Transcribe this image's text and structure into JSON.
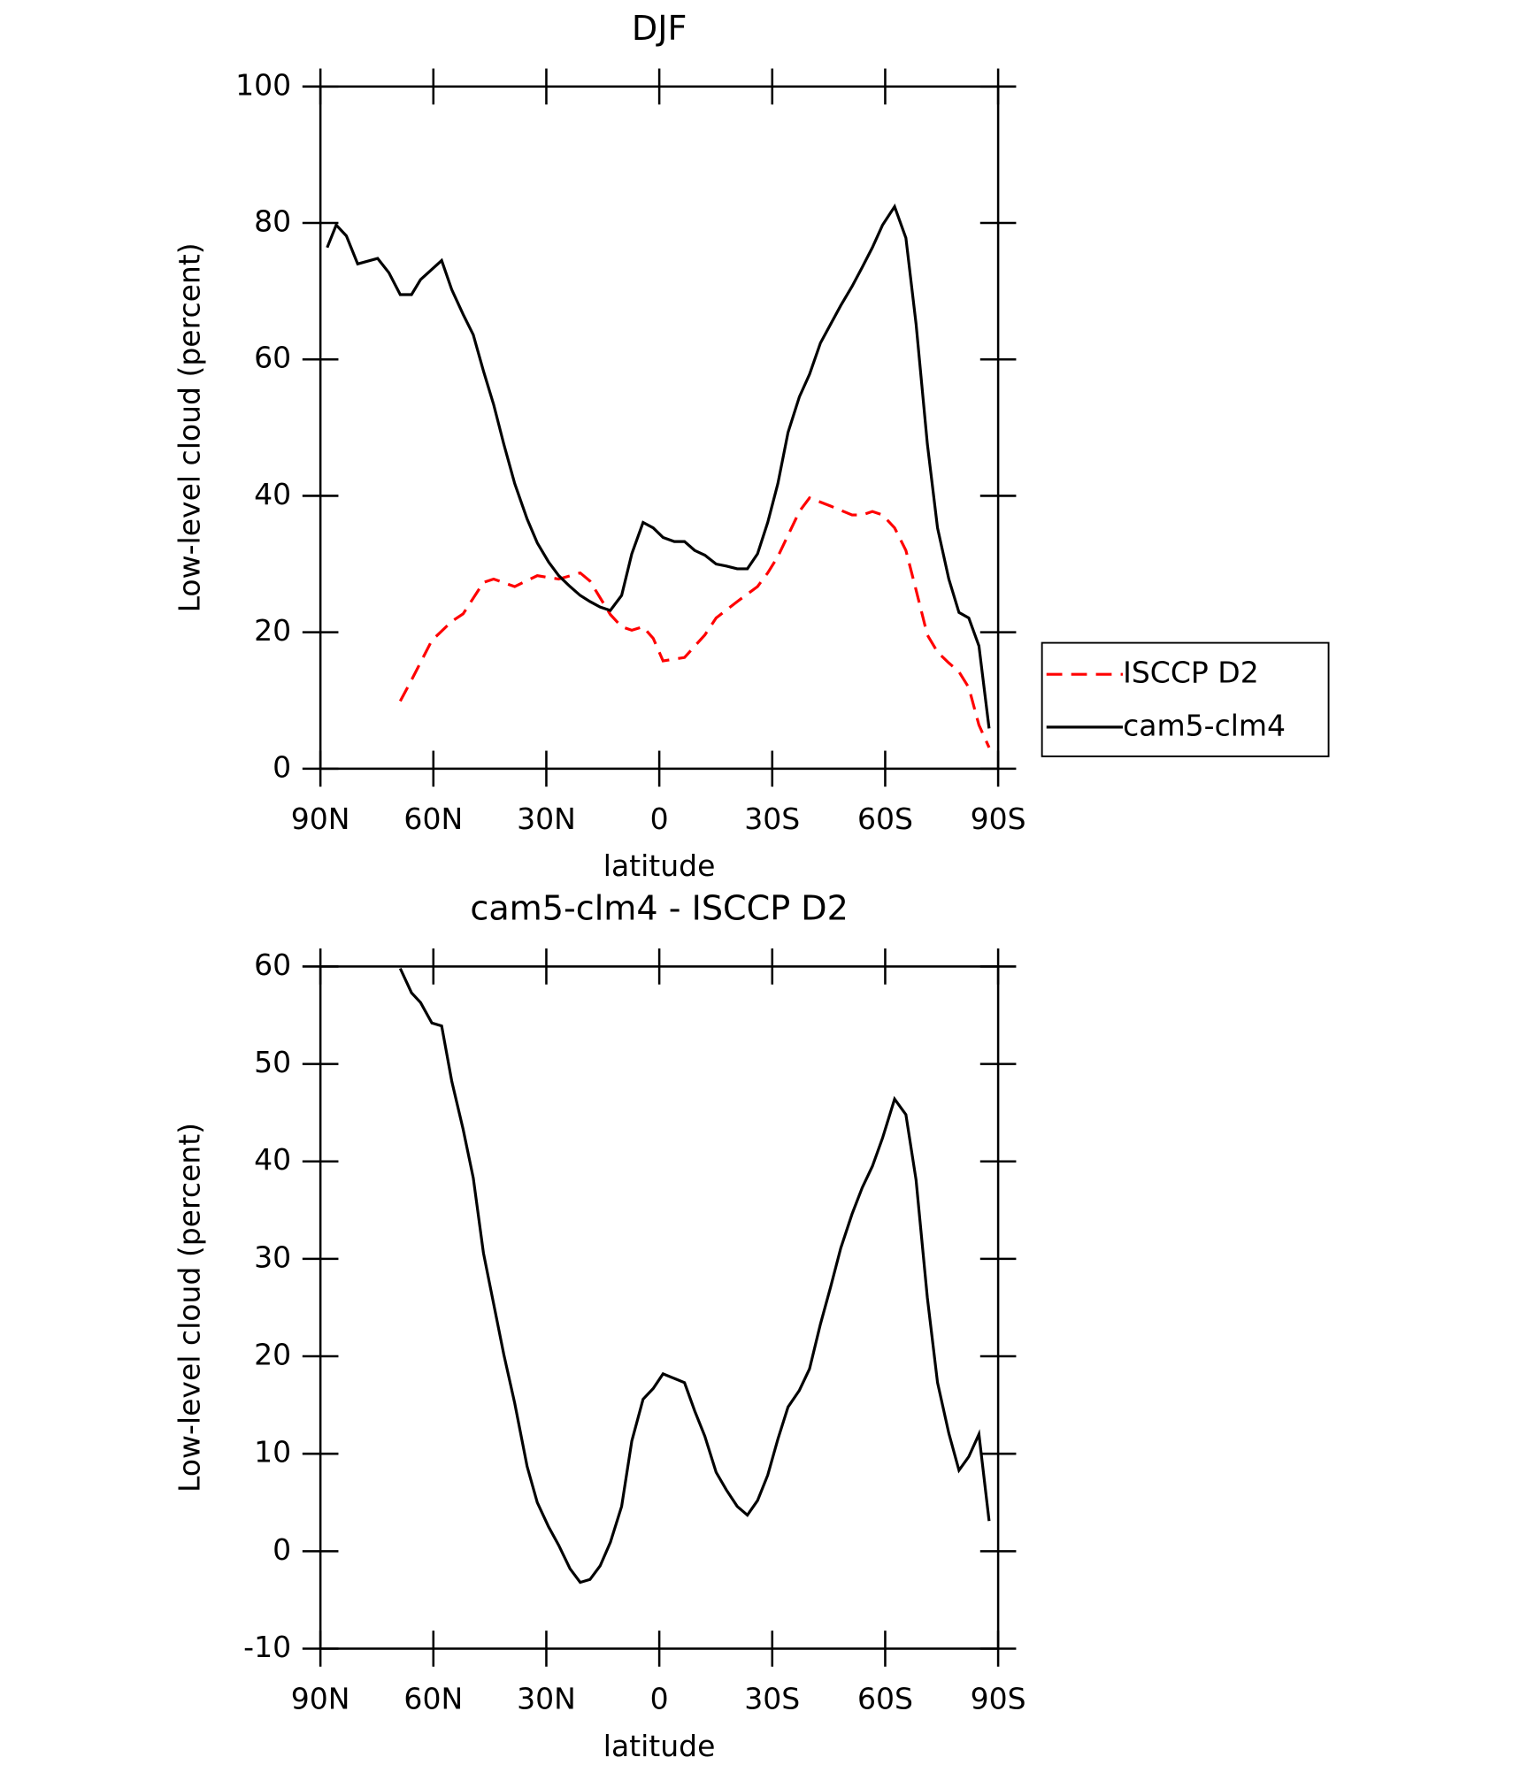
{
  "chart_data": [
    {
      "type": "line",
      "title": "DJF",
      "xlabel": "latitude",
      "ylabel": "Low-level cloud (percent)",
      "xlim": [
        90,
        -90
      ],
      "xticks": [
        {
          "value": 90,
          "label": "90N"
        },
        {
          "value": 60,
          "label": "60N"
        },
        {
          "value": 30,
          "label": "30N"
        },
        0,
        {
          "value": -30,
          "label": "30S"
        },
        {
          "value": -60,
          "label": "60S"
        },
        {
          "value": -90,
          "label": "90S"
        }
      ],
      "ylim": [
        0,
        100
      ],
      "yticks": [
        0,
        20,
        40,
        60,
        80,
        100
      ],
      "legend": "right",
      "series": [
        {
          "name": "ISCCP D2",
          "color": "#ff0000",
          "linestyle": "dashed",
          "x": [
            68.8,
            65.8,
            60.4,
            55.1,
            52.1,
            46.7,
            44.0,
            38.4,
            32.4,
            26.7,
            21.0,
            18.4,
            13.0,
            10.0,
            7.3,
            4.3,
            1.6,
            -1.0,
            -6.7,
            -12.1,
            -15.1,
            -20.7,
            -26.1,
            -28.8,
            -31.5,
            -37.2,
            -39.9,
            -45.5,
            -51.2,
            -53.9,
            -56.6,
            -59.3,
            -62.5,
            -65.5,
            -68.2,
            -71.2,
            -73.9,
            -76.9,
            -79.6,
            -82.2,
            -84.9,
            -87.6
          ],
          "values": [
            9.9,
            13.0,
            18.8,
            21.6,
            22.7,
            27.3,
            27.8,
            26.7,
            28.3,
            27.8,
            28.7,
            27.5,
            22.6,
            20.8,
            20.3,
            20.8,
            19.1,
            15.8,
            16.3,
            19.6,
            22.1,
            24.5,
            26.7,
            28.7,
            31.1,
            37.7,
            39.7,
            38.5,
            37.2,
            37.2,
            37.7,
            37.2,
            35.3,
            32.0,
            26.2,
            19.6,
            17.1,
            15.5,
            14.2,
            11.9,
            6.4,
            3.1
          ]
        },
        {
          "name": "cam5-clm4",
          "color": "#000000",
          "linestyle": "solid",
          "x": [
            88.2,
            85.8,
            83.1,
            80.1,
            74.8,
            71.8,
            68.8,
            65.8,
            63.4,
            57.8,
            55.1,
            52.1,
            49.4,
            46.7,
            44.0,
            41.3,
            38.4,
            35.1,
            32.4,
            29.4,
            26.7,
            23.7,
            21.0,
            18.4,
            15.7,
            13.0,
            10.0,
            7.3,
            4.3,
            1.6,
            -1.0,
            -4.0,
            -6.7,
            -9.4,
            -12.1,
            -15.1,
            -17.8,
            -20.7,
            -23.4,
            -26.1,
            -28.8,
            -31.5,
            -34.2,
            -37.2,
            -39.9,
            -42.8,
            -48.2,
            -51.2,
            -53.9,
            -56.6,
            -59.3,
            -62.5,
            -65.5,
            -68.2,
            -71.2,
            -73.9,
            -76.9,
            -79.6,
            -82.2,
            -84.9,
            -87.6
          ],
          "values": [
            76.4,
            79.7,
            78.1,
            74.0,
            74.8,
            72.7,
            69.5,
            69.5,
            71.7,
            74.5,
            70.2,
            66.6,
            63.6,
            58.3,
            53.4,
            47.6,
            41.8,
            36.6,
            33.1,
            30.3,
            28.3,
            26.7,
            25.4,
            24.5,
            23.7,
            23.2,
            25.4,
            31.5,
            36.1,
            35.3,
            33.9,
            33.3,
            33.3,
            32.0,
            31.3,
            30.0,
            29.7,
            29.3,
            29.3,
            31.5,
            36.1,
            41.8,
            49.3,
            54.5,
            57.8,
            62.4,
            67.9,
            70.7,
            73.5,
            76.4,
            79.7,
            82.4,
            77.8,
            65.2,
            47.6,
            35.3,
            27.8,
            22.9,
            22.1,
            18.0,
            5.9
          ]
        }
      ]
    },
    {
      "type": "line",
      "title": "cam5-clm4 - ISCCP D2",
      "xlabel": "latitude",
      "ylabel": "Low-level cloud (percent)",
      "xlim": [
        90,
        -90
      ],
      "xticks": [
        {
          "value": 90,
          "label": "90N"
        },
        {
          "value": 60,
          "label": "60N"
        },
        {
          "value": 30,
          "label": "30N"
        },
        0,
        {
          "value": -30,
          "label": "30S"
        },
        {
          "value": -60,
          "label": "60S"
        },
        {
          "value": -90,
          "label": "90S"
        }
      ],
      "ylim": [
        -10,
        60
      ],
      "yticks": [
        -10,
        0,
        10,
        20,
        30,
        40,
        50,
        60
      ],
      "series": [
        {
          "color": "#000000",
          "linestyle": "solid",
          "x": [
            68.8,
            65.8,
            63.4,
            60.4,
            57.8,
            55.1,
            52.1,
            49.4,
            46.7,
            44.0,
            41.3,
            38.4,
            35.1,
            32.4,
            29.4,
            26.7,
            23.7,
            21.0,
            18.4,
            15.7,
            13.0,
            10.0,
            7.3,
            4.3,
            1.6,
            -1.0,
            -6.7,
            -9.4,
            -12.1,
            -15.1,
            -17.8,
            -20.7,
            -23.4,
            -26.1,
            -28.8,
            -31.5,
            -34.2,
            -37.2,
            -39.9,
            -42.8,
            -45.5,
            -48.2,
            -51.2,
            -53.9,
            -56.6,
            -59.3,
            -62.5,
            -65.5,
            -68.2,
            -71.2,
            -73.9,
            -76.9,
            -79.6,
            -82.2,
            -84.9,
            -87.6
          ],
          "values": [
            59.8,
            57.3,
            56.3,
            54.2,
            53.9,
            48.2,
            43.3,
            38.3,
            30.6,
            25.4,
            20.2,
            15.2,
            8.7,
            5.0,
            2.5,
            0.6,
            -1.8,
            -3.2,
            -2.9,
            -1.5,
            0.9,
            4.6,
            11.3,
            15.6,
            16.7,
            18.2,
            17.3,
            14.4,
            11.8,
            8.1,
            6.3,
            4.6,
            3.7,
            5.2,
            7.8,
            11.5,
            14.8,
            16.5,
            18.7,
            23.3,
            27.1,
            31.1,
            34.6,
            37.3,
            39.5,
            42.4,
            46.4,
            44.8,
            38.1,
            26.0,
            17.3,
            12.1,
            8.3,
            9.7,
            12.0,
            3.1
          ]
        }
      ]
    }
  ]
}
